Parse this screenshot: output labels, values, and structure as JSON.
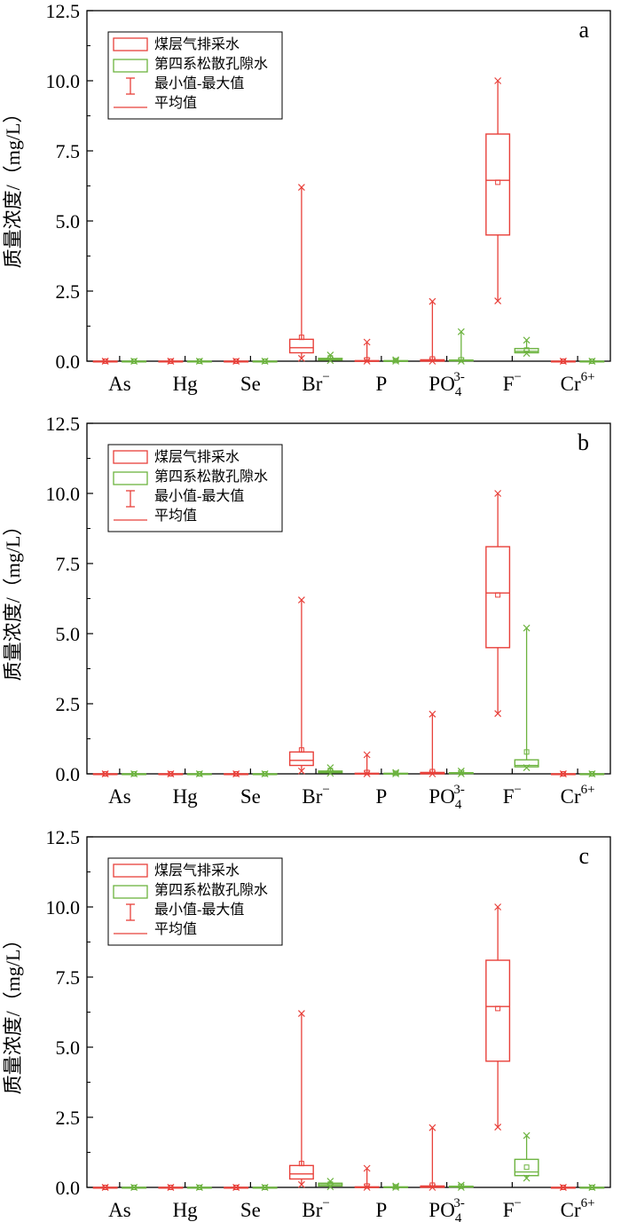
{
  "ylabel": "质量浓度/（mg/L）",
  "categories": [
    {
      "base": "As"
    },
    {
      "base": "Hg"
    },
    {
      "base": "Se"
    },
    {
      "base": "Br",
      "sup": "−"
    },
    {
      "base": "P"
    },
    {
      "base": "PO",
      "sub": "4",
      "sup": "3-"
    },
    {
      "base": "F",
      "sup": "−"
    },
    {
      "base": "Cr",
      "sup": "6+"
    }
  ],
  "yticks": [
    "0.0",
    "2.5",
    "5.0",
    "7.5",
    "10.0",
    "12.5"
  ],
  "legend": {
    "items": [
      "煤层气排采水",
      "第四系松散孔隙水",
      "最小值-最大值",
      "平均值"
    ],
    "color_coalbed": "#e8403a",
    "color_quaternary": "#6cb33f"
  },
  "chart_data": [
    {
      "type": "box",
      "panel_label": "a",
      "ylim": [
        0,
        12.5
      ],
      "series": [
        {
          "name": "煤层气排采水",
          "color": "#e8403a",
          "boxes": [
            {
              "min": 0,
              "q1": 0,
              "median": 0,
              "q3": 0,
              "max": 0,
              "mean": 0
            },
            {
              "min": 0,
              "q1": 0,
              "median": 0,
              "q3": 0,
              "max": 0,
              "mean": 0
            },
            {
              "min": 0,
              "q1": 0,
              "median": 0,
              "q3": 0,
              "max": 0,
              "mean": 0
            },
            {
              "min": 0.1,
              "q1": 0.3,
              "median": 0.48,
              "q3": 0.78,
              "max": 6.2,
              "mean": 0.85
            },
            {
              "min": 0,
              "q1": 0,
              "median": 0.01,
              "q3": 0.02,
              "max": 0.68,
              "mean": 0.05
            },
            {
              "min": 0,
              "q1": 0,
              "median": 0.02,
              "q3": 0.05,
              "max": 2.13,
              "mean": 0.08
            },
            {
              "min": 2.15,
              "q1": 4.5,
              "median": 6.45,
              "q3": 8.1,
              "max": 10.0,
              "mean": 6.38
            },
            {
              "min": 0,
              "q1": 0,
              "median": 0,
              "q3": 0,
              "max": 0,
              "mean": 0
            }
          ]
        },
        {
          "name": "第四系松散孔隙水",
          "color": "#6cb33f",
          "boxes": [
            {
              "min": 0,
              "q1": 0,
              "median": 0,
              "q3": 0,
              "max": 0,
              "mean": 0
            },
            {
              "min": 0,
              "q1": 0,
              "median": 0,
              "q3": 0,
              "max": 0,
              "mean": 0
            },
            {
              "min": 0,
              "q1": 0,
              "median": 0,
              "q3": 0,
              "max": 0,
              "mean": 0
            },
            {
              "min": 0.02,
              "q1": 0.04,
              "median": 0.07,
              "q3": 0.1,
              "max": 0.22,
              "mean": 0.12
            },
            {
              "min": 0,
              "q1": 0,
              "median": 0.01,
              "q3": 0.02,
              "max": 0.05,
              "mean": 0.02
            },
            {
              "min": 0,
              "q1": 0.01,
              "median": 0.02,
              "q3": 0.04,
              "max": 1.05,
              "mean": 0.05
            },
            {
              "min": 0.28,
              "q1": 0.3,
              "median": 0.35,
              "q3": 0.45,
              "max": 0.75,
              "mean": 0.4
            },
            {
              "min": 0,
              "q1": 0,
              "median": 0,
              "q3": 0,
              "max": 0,
              "mean": 0
            }
          ]
        }
      ]
    },
    {
      "type": "box",
      "panel_label": "b",
      "ylim": [
        0,
        12.5
      ],
      "series": [
        {
          "name": "煤层气排采水",
          "color": "#e8403a",
          "boxes": [
            {
              "min": 0,
              "q1": 0,
              "median": 0,
              "q3": 0,
              "max": 0,
              "mean": 0
            },
            {
              "min": 0,
              "q1": 0,
              "median": 0,
              "q3": 0,
              "max": 0,
              "mean": 0
            },
            {
              "min": 0,
              "q1": 0,
              "median": 0,
              "q3": 0,
              "max": 0,
              "mean": 0
            },
            {
              "min": 0.1,
              "q1": 0.3,
              "median": 0.48,
              "q3": 0.78,
              "max": 6.2,
              "mean": 0.85
            },
            {
              "min": 0,
              "q1": 0,
              "median": 0.01,
              "q3": 0.02,
              "max": 0.68,
              "mean": 0.05
            },
            {
              "min": 0,
              "q1": 0,
              "median": 0.02,
              "q3": 0.05,
              "max": 2.13,
              "mean": 0.08
            },
            {
              "min": 2.15,
              "q1": 4.5,
              "median": 6.45,
              "q3": 8.1,
              "max": 10.0,
              "mean": 6.38
            },
            {
              "min": 0,
              "q1": 0,
              "median": 0,
              "q3": 0,
              "max": 0,
              "mean": 0
            }
          ]
        },
        {
          "name": "第四系松散孔隙水",
          "color": "#6cb33f",
          "boxes": [
            {
              "min": 0,
              "q1": 0,
              "median": 0,
              "q3": 0,
              "max": 0,
              "mean": 0
            },
            {
              "min": 0,
              "q1": 0,
              "median": 0,
              "q3": 0,
              "max": 0,
              "mean": 0
            },
            {
              "min": 0,
              "q1": 0,
              "median": 0,
              "q3": 0,
              "max": 0,
              "mean": 0
            },
            {
              "min": 0.02,
              "q1": 0.04,
              "median": 0.07,
              "q3": 0.1,
              "max": 0.22,
              "mean": 0.12
            },
            {
              "min": 0,
              "q1": 0,
              "median": 0.01,
              "q3": 0.02,
              "max": 0.05,
              "mean": 0.02
            },
            {
              "min": 0,
              "q1": 0.01,
              "median": 0.02,
              "q3": 0.04,
              "max": 0.1,
              "mean": 0.05
            },
            {
              "min": 0.22,
              "q1": 0.25,
              "median": 0.3,
              "q3": 0.5,
              "max": 5.2,
              "mean": 0.78
            },
            {
              "min": 0,
              "q1": 0,
              "median": 0,
              "q3": 0,
              "max": 0,
              "mean": 0
            }
          ]
        }
      ]
    },
    {
      "type": "box",
      "panel_label": "c",
      "ylim": [
        0,
        12.5
      ],
      "series": [
        {
          "name": "煤层气排采水",
          "color": "#e8403a",
          "boxes": [
            {
              "min": 0,
              "q1": 0,
              "median": 0,
              "q3": 0,
              "max": 0,
              "mean": 0
            },
            {
              "min": 0,
              "q1": 0,
              "median": 0,
              "q3": 0,
              "max": 0,
              "mean": 0
            },
            {
              "min": 0,
              "q1": 0,
              "median": 0,
              "q3": 0,
              "max": 0,
              "mean": 0
            },
            {
              "min": 0.1,
              "q1": 0.3,
              "median": 0.48,
              "q3": 0.78,
              "max": 6.2,
              "mean": 0.85
            },
            {
              "min": 0,
              "q1": 0,
              "median": 0.01,
              "q3": 0.02,
              "max": 0.68,
              "mean": 0.05
            },
            {
              "min": 0,
              "q1": 0,
              "median": 0.02,
              "q3": 0.05,
              "max": 2.13,
              "mean": 0.08
            },
            {
              "min": 2.15,
              "q1": 4.5,
              "median": 6.45,
              "q3": 8.1,
              "max": 10.0,
              "mean": 6.38
            },
            {
              "min": 0,
              "q1": 0,
              "median": 0,
              "q3": 0,
              "max": 0,
              "mean": 0
            }
          ]
        },
        {
          "name": "第四系松散孔隙水",
          "color": "#6cb33f",
          "boxes": [
            {
              "min": 0,
              "q1": 0,
              "median": 0,
              "q3": 0,
              "max": 0,
              "mean": 0
            },
            {
              "min": 0,
              "q1": 0,
              "median": 0,
              "q3": 0,
              "max": 0,
              "mean": 0
            },
            {
              "min": 0,
              "q1": 0,
              "median": 0,
              "q3": 0,
              "max": 0,
              "mean": 0
            },
            {
              "min": 0.02,
              "q1": 0.05,
              "median": 0.1,
              "q3": 0.15,
              "max": 0.22,
              "mean": 0.12
            },
            {
              "min": 0,
              "q1": 0,
              "median": 0.01,
              "q3": 0.02,
              "max": 0.05,
              "mean": 0.02
            },
            {
              "min": 0,
              "q1": 0.01,
              "median": 0.02,
              "q3": 0.04,
              "max": 0.08,
              "mean": 0.04
            },
            {
              "min": 0.33,
              "q1": 0.42,
              "median": 0.55,
              "q3": 1.0,
              "max": 1.85,
              "mean": 0.72
            },
            {
              "min": 0,
              "q1": 0,
              "median": 0,
              "q3": 0,
              "max": 0,
              "mean": 0
            }
          ]
        }
      ]
    }
  ]
}
